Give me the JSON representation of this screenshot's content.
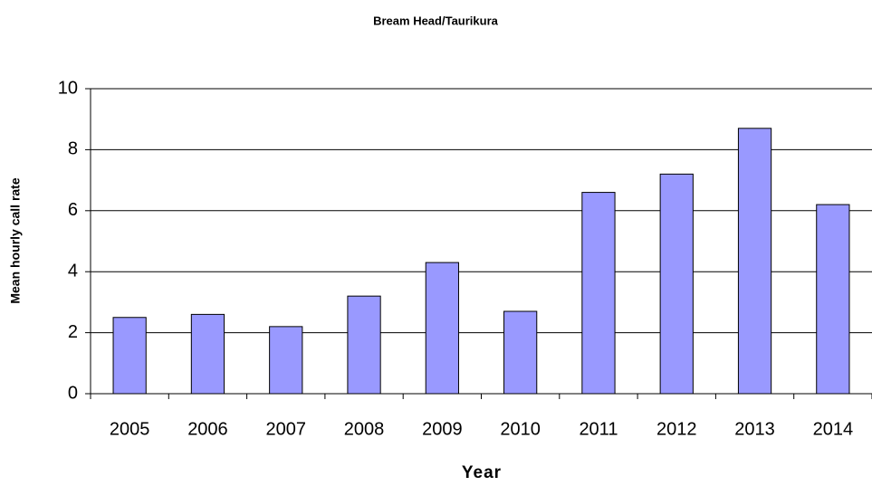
{
  "chart_data": {
    "type": "bar",
    "title": "Bream Head/Taurikura",
    "x_label": "Year",
    "y_label": "Mean hourly call rate",
    "categories": [
      "2005",
      "2006",
      "2007",
      "2008",
      "2009",
      "2010",
      "2011",
      "2012",
      "2013",
      "2014"
    ],
    "values": [
      2.5,
      2.6,
      2.2,
      3.2,
      4.3,
      2.7,
      6.6,
      7.2,
      8.7,
      6.2
    ],
    "color": "#9999ff",
    "ylim": [
      0,
      10
    ],
    "yticks": [
      0,
      2,
      4,
      6,
      8,
      10
    ],
    "grid": true
  }
}
